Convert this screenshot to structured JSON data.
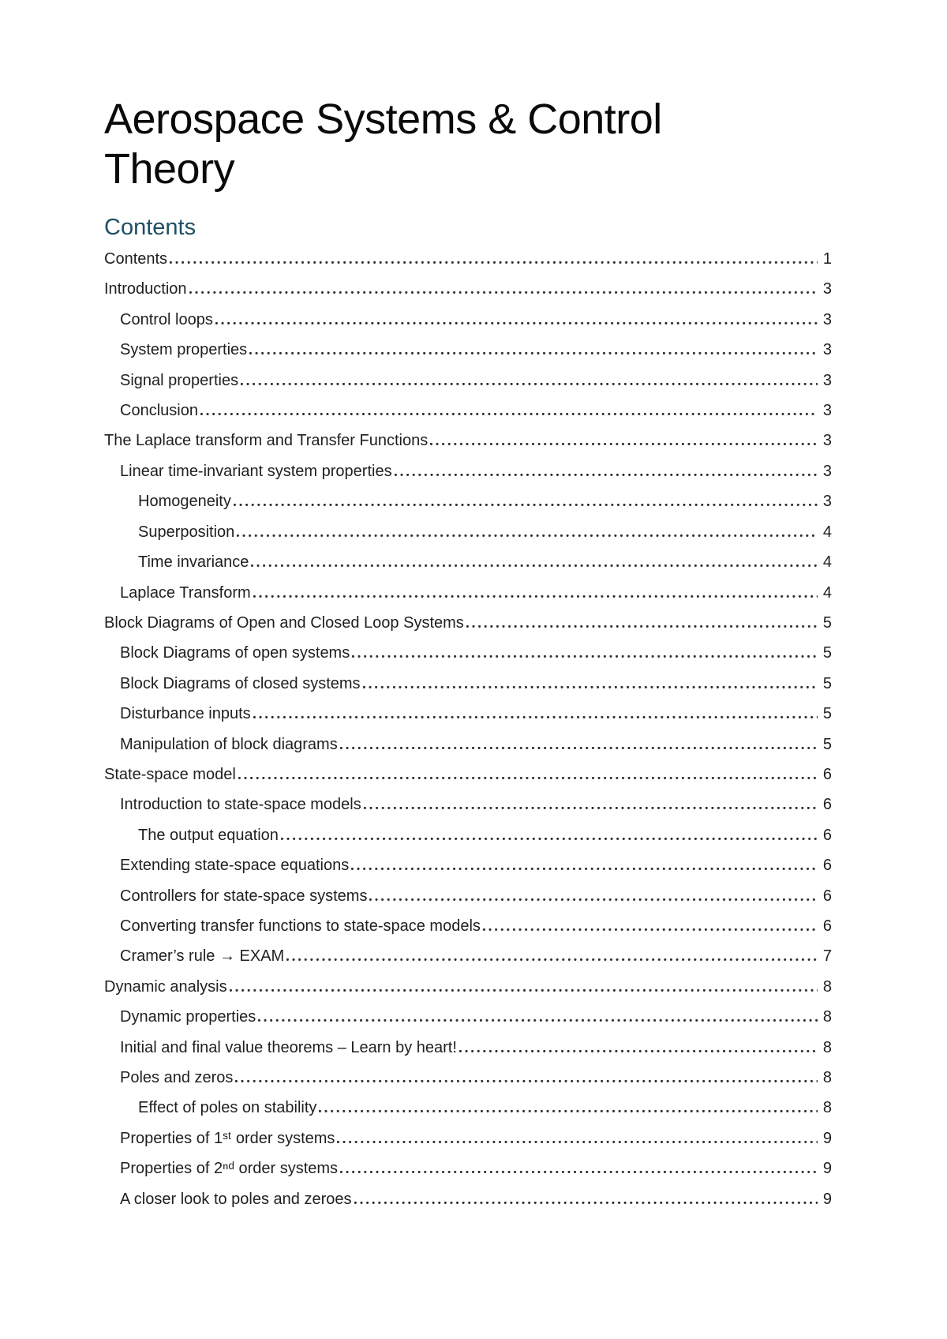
{
  "document": {
    "title": "Aerospace Systems & Control Theory"
  },
  "toc": {
    "heading": "Contents",
    "entries": [
      {
        "label": "Contents",
        "page": "1",
        "level": 0
      },
      {
        "label": "Introduction",
        "page": "3",
        "level": 0
      },
      {
        "label": "Control loops",
        "page": "3",
        "level": 1
      },
      {
        "label": "System properties",
        "page": "3",
        "level": 1
      },
      {
        "label": "Signal properties",
        "page": "3",
        "level": 1
      },
      {
        "label": "Conclusion",
        "page": "3",
        "level": 1
      },
      {
        "label": "The Laplace transform and Transfer Functions",
        "page": "3",
        "level": 0
      },
      {
        "label": "Linear time-invariant system properties",
        "page": "3",
        "level": 1
      },
      {
        "label": "Homogeneity",
        "page": "3",
        "level": 2
      },
      {
        "label": "Superposition",
        "page": "4",
        "level": 2
      },
      {
        "label": "Time invariance",
        "page": "4",
        "level": 2
      },
      {
        "label": "Laplace Transform",
        "page": "4",
        "level": 1
      },
      {
        "label": "Block Diagrams of Open and Closed Loop Systems",
        "page": "5",
        "level": 0
      },
      {
        "label": "Block Diagrams of open systems",
        "page": "5",
        "level": 1
      },
      {
        "label": "Block Diagrams of closed systems",
        "page": "5",
        "level": 1
      },
      {
        "label": "Disturbance inputs",
        "page": "5",
        "level": 1
      },
      {
        "label": "Manipulation of block diagrams",
        "page": "5",
        "level": 1
      },
      {
        "label": "State-space model",
        "page": "6",
        "level": 0
      },
      {
        "label": "Introduction to state-space models",
        "page": "6",
        "level": 1
      },
      {
        "label": "The output equation",
        "page": "6",
        "level": 2
      },
      {
        "label": "Extending state-space equations",
        "page": "6",
        "level": 1
      },
      {
        "label": "Controllers for state-space systems",
        "page": "6",
        "level": 1
      },
      {
        "label": "Converting transfer functions to state-space models",
        "page": "6",
        "level": 1
      },
      {
        "label": "Cramer’s rule → EXAM",
        "page": "7",
        "level": 1
      },
      {
        "label": "Dynamic analysis",
        "page": "8",
        "level": 0
      },
      {
        "label": "Dynamic properties",
        "page": "8",
        "level": 1
      },
      {
        "label": "Initial and final value theorems – Learn by heart!",
        "page": "8",
        "level": 1
      },
      {
        "label": "Poles and zeros",
        "page": "8",
        "level": 1
      },
      {
        "label": "Effect of poles on stability",
        "page": "8",
        "level": 2
      },
      {
        "label": "Properties of 1ˢᵗ order systems",
        "page": "9",
        "level": 1
      },
      {
        "label": "Properties of 2ⁿᵈ order systems",
        "page": "9",
        "level": 1
      },
      {
        "label": "A closer look to poles and zeroes",
        "page": "9",
        "level": 1
      }
    ]
  },
  "colors": {
    "heading_accent": "#1f4e63",
    "body_text": "#1f1f1f",
    "background": "#ffffff"
  }
}
